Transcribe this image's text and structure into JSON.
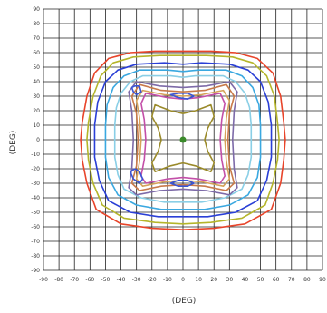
{
  "chart_data": {
    "type": "contour",
    "xlabel": "(DEG)",
    "ylabel": "(DEG)",
    "xlim": [
      -90,
      90
    ],
    "ylim": [
      -90,
      90
    ],
    "xticks": [
      "-90",
      "-80",
      "-70",
      "-60",
      "-50",
      "-40",
      "-30",
      "-20",
      "-10",
      "0",
      "10",
      "20",
      "30",
      "40",
      "50",
      "60",
      "70",
      "80",
      "90"
    ],
    "yticks": [
      "90",
      "80",
      "70",
      "60",
      "50",
      "40",
      "30",
      "20",
      "10",
      "0",
      "-10",
      "-20",
      "-30",
      "-40",
      "-50",
      "-60",
      "-70",
      "-80",
      "-90"
    ],
    "grid": true,
    "center_marker": {
      "x": 0,
      "y": 0,
      "color": "#3a8a2a"
    },
    "contours": [
      {
        "color": "#e8442a",
        "points": [
          [
            -34,
            60
          ],
          [
            -18,
            61
          ],
          [
            0,
            61
          ],
          [
            18,
            61
          ],
          [
            34,
            60
          ],
          [
            48,
            56
          ],
          [
            58,
            46
          ],
          [
            63,
            30
          ],
          [
            65,
            12
          ],
          [
            66,
            0
          ],
          [
            65,
            -14
          ],
          [
            63,
            -30
          ],
          [
            57,
            -48
          ],
          [
            40,
            -58
          ],
          [
            20,
            -61
          ],
          [
            0,
            -62
          ],
          [
            -20,
            -61
          ],
          [
            -40,
            -58
          ],
          [
            -56,
            -48
          ],
          [
            -62,
            -30
          ],
          [
            -65,
            -14
          ],
          [
            -66,
            0
          ],
          [
            -65,
            12
          ],
          [
            -62,
            30
          ],
          [
            -57,
            46
          ],
          [
            -48,
            56
          ]
        ]
      },
      {
        "color": "#b5b52a",
        "points": [
          [
            -32,
            57
          ],
          [
            -15,
            58
          ],
          [
            0,
            58
          ],
          [
            15,
            58
          ],
          [
            32,
            57
          ],
          [
            45,
            53
          ],
          [
            54,
            44
          ],
          [
            59,
            30
          ],
          [
            61,
            12
          ],
          [
            62,
            0
          ],
          [
            61,
            -14
          ],
          [
            58,
            -30
          ],
          [
            53,
            -45
          ],
          [
            38,
            -54
          ],
          [
            18,
            -57
          ],
          [
            0,
            -58
          ],
          [
            -18,
            -57
          ],
          [
            -38,
            -54
          ],
          [
            -52,
            -45
          ],
          [
            -58,
            -30
          ],
          [
            -61,
            -14
          ],
          [
            -62,
            0
          ],
          [
            -61,
            12
          ],
          [
            -58,
            30
          ],
          [
            -53,
            44
          ],
          [
            -45,
            53
          ]
        ]
      },
      {
        "color": "#2a3fd6",
        "points": [
          [
            -30,
            52
          ],
          [
            -12,
            53
          ],
          [
            0,
            52
          ],
          [
            12,
            53
          ],
          [
            30,
            52
          ],
          [
            42,
            48
          ],
          [
            50,
            40
          ],
          [
            55,
            26
          ],
          [
            57,
            10
          ],
          [
            57,
            0
          ],
          [
            57,
            -12
          ],
          [
            54,
            -28
          ],
          [
            48,
            -42
          ],
          [
            34,
            -50
          ],
          [
            16,
            -53
          ],
          [
            0,
            -53
          ],
          [
            -16,
            -53
          ],
          [
            -34,
            -50
          ],
          [
            -48,
            -42
          ],
          [
            -54,
            -28
          ],
          [
            -57,
            -12
          ],
          [
            -57,
            0
          ],
          [
            -57,
            10
          ],
          [
            -55,
            26
          ],
          [
            -50,
            40
          ],
          [
            -42,
            48
          ]
        ]
      },
      {
        "color": "#3aa8e0",
        "points": [
          [
            -28,
            48
          ],
          [
            -10,
            48
          ],
          [
            0,
            47
          ],
          [
            10,
            48
          ],
          [
            28,
            48
          ],
          [
            38,
            44
          ],
          [
            45,
            36
          ],
          [
            49,
            24
          ],
          [
            50,
            10
          ],
          [
            50,
            0
          ],
          [
            50,
            -12
          ],
          [
            48,
            -26
          ],
          [
            42,
            -38
          ],
          [
            30,
            -45
          ],
          [
            14,
            -48
          ],
          [
            0,
            -48
          ],
          [
            -14,
            -48
          ],
          [
            -30,
            -45
          ],
          [
            -42,
            -38
          ],
          [
            -48,
            -26
          ],
          [
            -50,
            -12
          ],
          [
            -50,
            0
          ],
          [
            -50,
            10
          ],
          [
            -49,
            24
          ],
          [
            -45,
            36
          ],
          [
            -38,
            44
          ]
        ]
      },
      {
        "color": "#8acfe6",
        "points": [
          [
            -26,
            44
          ],
          [
            -8,
            44
          ],
          [
            0,
            43
          ],
          [
            8,
            44
          ],
          [
            26,
            44
          ],
          [
            34,
            40
          ],
          [
            40,
            32
          ],
          [
            43,
            22
          ],
          [
            44,
            10
          ],
          [
            44,
            0
          ],
          [
            44,
            -12
          ],
          [
            42,
            -24
          ],
          [
            38,
            -34
          ],
          [
            27,
            -40
          ],
          [
            12,
            -43
          ],
          [
            0,
            -43
          ],
          [
            -12,
            -43
          ],
          [
            -27,
            -40
          ],
          [
            -38,
            -34
          ],
          [
            -42,
            -24
          ],
          [
            -44,
            -12
          ],
          [
            -44,
            0
          ],
          [
            -44,
            10
          ],
          [
            -43,
            22
          ],
          [
            -40,
            32
          ],
          [
            -34,
            40
          ]
        ]
      },
      {
        "color": "#7d6aa8",
        "points": [
          [
            -30,
            40
          ],
          [
            -15,
            37
          ],
          [
            0,
            36
          ],
          [
            15,
            37
          ],
          [
            30,
            40
          ],
          [
            35,
            33
          ],
          [
            33,
            20
          ],
          [
            32,
            0
          ],
          [
            33,
            -20
          ],
          [
            35,
            -33
          ],
          [
            30,
            -38
          ],
          [
            15,
            -35
          ],
          [
            0,
            -34
          ],
          [
            -15,
            -35
          ],
          [
            -30,
            -38
          ],
          [
            -35,
            -33
          ],
          [
            -33,
            -20
          ],
          [
            -32,
            0
          ],
          [
            -33,
            20
          ],
          [
            -35,
            33
          ]
        ]
      },
      {
        "color": "#c87a4a",
        "points": [
          [
            -28,
            38
          ],
          [
            -14,
            34
          ],
          [
            0,
            33
          ],
          [
            14,
            34
          ],
          [
            28,
            38
          ],
          [
            33,
            30
          ],
          [
            30,
            18
          ],
          [
            29,
            0
          ],
          [
            30,
            -18
          ],
          [
            33,
            -30
          ],
          [
            28,
            -35
          ],
          [
            14,
            -32
          ],
          [
            0,
            -31
          ],
          [
            -14,
            -32
          ],
          [
            -28,
            -35
          ],
          [
            -33,
            -30
          ],
          [
            -30,
            -18
          ],
          [
            -29,
            0
          ],
          [
            -30,
            18
          ],
          [
            -33,
            30
          ]
        ]
      },
      {
        "color": "#d6a25a",
        "points": [
          [
            -26,
            34
          ],
          [
            -12,
            31
          ],
          [
            0,
            30
          ],
          [
            12,
            31
          ],
          [
            26,
            34
          ],
          [
            30,
            27
          ],
          [
            28,
            15
          ],
          [
            27,
            0
          ],
          [
            28,
            -15
          ],
          [
            30,
            -27
          ],
          [
            26,
            -32
          ],
          [
            12,
            -29
          ],
          [
            0,
            -28
          ],
          [
            -12,
            -29
          ],
          [
            -26,
            -32
          ],
          [
            -30,
            -27
          ],
          [
            -28,
            -15
          ],
          [
            -27,
            0
          ],
          [
            -28,
            15
          ],
          [
            -30,
            27
          ]
        ]
      },
      {
        "color": "#c34fa8",
        "points": [
          [
            -24,
            32
          ],
          [
            -10,
            29
          ],
          [
            0,
            28
          ],
          [
            10,
            29
          ],
          [
            24,
            32
          ],
          [
            27,
            25
          ],
          [
            25,
            14
          ],
          [
            24,
            0
          ],
          [
            25,
            -14
          ],
          [
            27,
            -25
          ],
          [
            24,
            -30
          ],
          [
            10,
            -27
          ],
          [
            0,
            -26
          ],
          [
            -10,
            -27
          ],
          [
            -24,
            -30
          ],
          [
            -27,
            -25
          ],
          [
            -25,
            -14
          ],
          [
            -24,
            0
          ],
          [
            -25,
            14
          ],
          [
            -27,
            25
          ]
        ]
      },
      {
        "color": "#9a8a2a",
        "points": [
          [
            -18,
            24
          ],
          [
            -8,
            20
          ],
          [
            0,
            18
          ],
          [
            8,
            20
          ],
          [
            18,
            24
          ],
          [
            20,
            16
          ],
          [
            16,
            8
          ],
          [
            14,
            0
          ],
          [
            16,
            -8
          ],
          [
            20,
            -16
          ],
          [
            18,
            -22
          ],
          [
            8,
            -18
          ],
          [
            0,
            -16
          ],
          [
            -8,
            -18
          ],
          [
            -18,
            -22
          ],
          [
            -20,
            -16
          ],
          [
            -16,
            -8
          ],
          [
            -14,
            0
          ],
          [
            -16,
            8
          ],
          [
            -20,
            16
          ]
        ]
      },
      {
        "color": "#3a55d6",
        "points": [
          [
            -8,
            31
          ],
          [
            -3,
            29
          ],
          [
            3,
            28
          ],
          [
            7,
            30
          ],
          [
            3,
            32
          ],
          [
            -3,
            32
          ]
        ]
      },
      {
        "color": "#3a55d6",
        "points": [
          [
            -8,
            -30
          ],
          [
            -3,
            -28
          ],
          [
            3,
            -28
          ],
          [
            7,
            -30
          ],
          [
            3,
            -32
          ],
          [
            -3,
            -32
          ]
        ]
      },
      {
        "color": "#3a55d6",
        "points": [
          [
            -34,
            -22
          ],
          [
            -32,
            -27
          ],
          [
            -28,
            -30
          ],
          [
            -26,
            -27
          ],
          [
            -28,
            -22
          ],
          [
            -31,
            -20
          ]
        ]
      },
      {
        "color": "#3a55d6",
        "points": [
          [
            -32,
            33
          ],
          [
            -30,
            31
          ],
          [
            -27,
            33
          ],
          [
            -28,
            37
          ],
          [
            -31,
            37
          ],
          [
            -33,
            36
          ]
        ]
      }
    ]
  }
}
